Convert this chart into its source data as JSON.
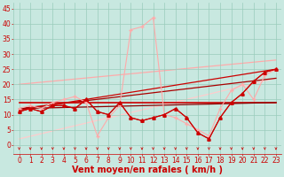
{
  "bg_color": "#c8e8e0",
  "grid_color": "#99ccbb",
  "xlabel": "Vent moyen/en rafales ( km/h )",
  "xlabel_color": "#cc0000",
  "xlabel_fontsize": 7,
  "tick_color": "#cc0000",
  "tick_fontsize": 5.5,
  "yticks": [
    0,
    5,
    10,
    15,
    20,
    25,
    30,
    35,
    40,
    45
  ],
  "xticks": [
    0,
    1,
    2,
    3,
    4,
    5,
    6,
    7,
    8,
    9,
    10,
    11,
    12,
    13,
    14,
    15,
    16,
    17,
    18,
    19,
    20,
    21,
    22,
    23
  ],
  "ylim": [
    -3,
    47
  ],
  "xlim": [
    -0.5,
    23.5
  ],
  "line_wind_avg": {
    "x": [
      0,
      1,
      2,
      3,
      4,
      5,
      6,
      7,
      8,
      9,
      10,
      11,
      12,
      13,
      14,
      15,
      16,
      17,
      18,
      19,
      20,
      21,
      22,
      23
    ],
    "y": [
      11,
      12,
      11,
      13,
      13,
      12,
      15,
      11,
      10,
      14,
      9,
      8,
      9,
      10,
      12,
      9,
      4,
      2,
      9,
      14,
      17,
      21,
      24,
      25
    ],
    "color": "#cc0000",
    "lw": 0.8,
    "marker": "+",
    "ms": 3.0
  },
  "line_wind_gust": {
    "x": [
      0,
      1,
      2,
      3,
      4,
      5,
      6,
      7,
      8,
      9,
      10,
      11,
      12,
      13,
      14,
      15,
      16,
      17,
      18,
      19,
      20,
      21,
      22,
      23
    ],
    "y": [
      12,
      13,
      12,
      14,
      15,
      16,
      14,
      3,
      9,
      13,
      38,
      39,
      42,
      10,
      9,
      7,
      5,
      3,
      12,
      18,
      20,
      15,
      23,
      25
    ],
    "color": "#ffaaaa",
    "lw": 0.8,
    "marker": "+",
    "ms": 2.5
  },
  "line_wind_triangle": {
    "x": [
      0,
      1,
      2,
      3,
      4,
      5,
      6,
      7,
      8,
      9,
      10,
      11,
      12,
      13,
      14,
      15,
      16,
      17,
      18,
      19,
      20,
      21,
      22,
      23
    ],
    "y": [
      11,
      12,
      11,
      13,
      13,
      12,
      15,
      11,
      10,
      14,
      9,
      8,
      9,
      10,
      12,
      9,
      4,
      2,
      9,
      14,
      17,
      21,
      24,
      25
    ],
    "color": "#cc0000",
    "lw": 0.8,
    "marker": "^",
    "ms": 2.5
  },
  "trend_avg_line": [
    0,
    11.5,
    23,
    25
  ],
  "trend_avg_color": "#cc0000",
  "trend_avg_lw": 0.9,
  "trend_gust_line": [
    0,
    20,
    23,
    28
  ],
  "trend_gust_color": "#ffaaaa",
  "trend_gust_lw": 0.9,
  "trend_pink_line": [
    0,
    2,
    23,
    22
  ],
  "trend_pink_color": "#ffcccc",
  "trend_pink_lw": 0.9,
  "trend_flat_line": [
    0,
    14,
    23,
    14
  ],
  "trend_flat_color": "#cc0000",
  "trend_flat_lw": 1.2,
  "trend_dark_line": [
    0,
    12,
    23,
    14
  ],
  "trend_dark_color": "#880000",
  "trend_dark_lw": 0.9,
  "trend_dark2_line": [
    0,
    12,
    23,
    22
  ],
  "trend_dark2_color": "#aa0000",
  "trend_dark2_lw": 0.9
}
